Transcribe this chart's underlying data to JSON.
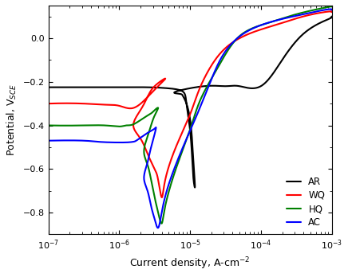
{
  "title": "",
  "xlabel": "Current density, A-cm⁻²",
  "ylabel": "Potential, V$_{SCE}$",
  "xlim": [
    1e-07,
    0.001
  ],
  "ylim": [
    -0.9,
    0.15
  ],
  "legend_labels": [
    "AR",
    "WQ",
    "HQ",
    "AC"
  ],
  "line_colors": [
    "black",
    "red",
    "green",
    "blue"
  ],
  "line_width": 1.5,
  "yticks": [
    -0.8,
    -0.6,
    -0.4,
    -0.2,
    0.0
  ]
}
